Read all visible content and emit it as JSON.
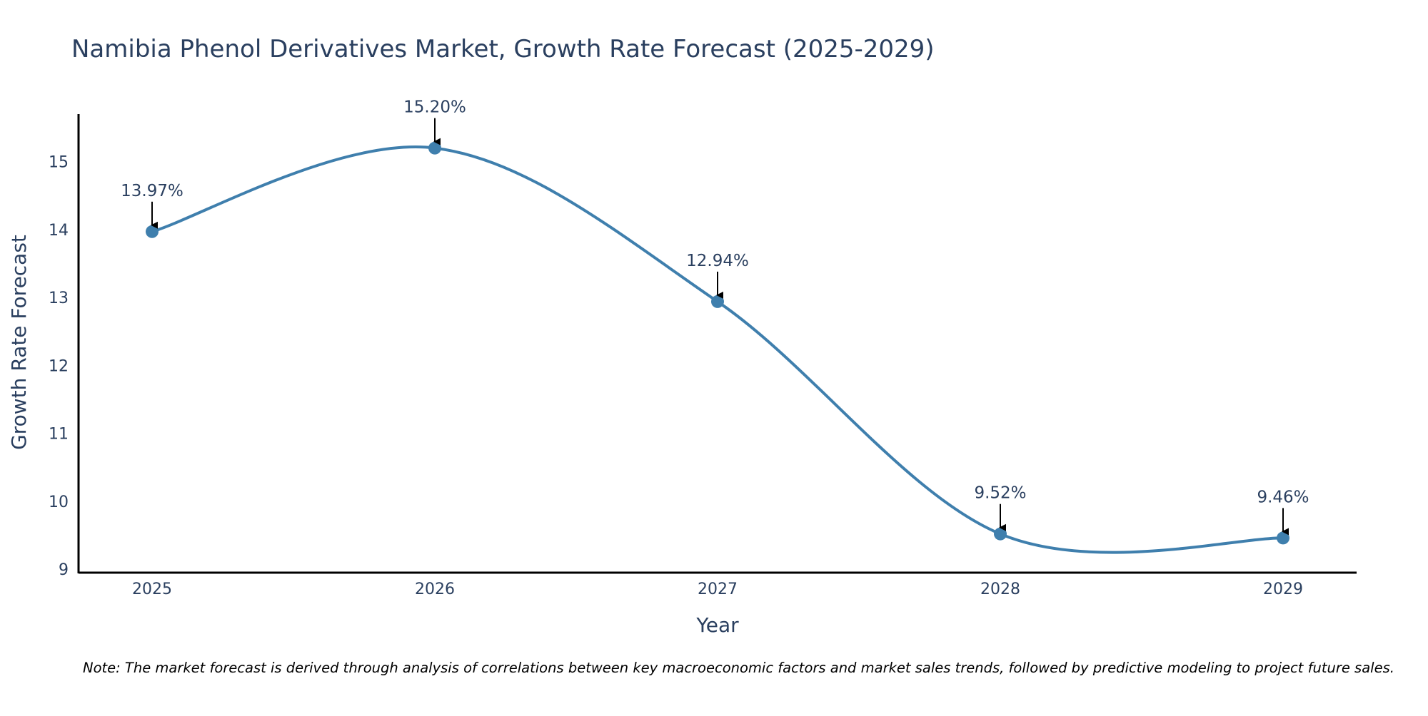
{
  "chart_data": {
    "type": "line",
    "title": "Namibia Phenol Derivatives Market, Growth Rate Forecast (2025-2029)",
    "xlabel": "Year",
    "ylabel": "Growth Rate Forecast",
    "categories": [
      "2025",
      "2026",
      "2027",
      "2028",
      "2029"
    ],
    "series": [
      {
        "name": "Growth Rate Forecast",
        "values": [
          13.97,
          15.2,
          12.94,
          9.52,
          9.46
        ],
        "labels": [
          "13.97%",
          "15.20%",
          "12.94%",
          "9.52%",
          "9.46%"
        ]
      }
    ],
    "ylim": [
      8.95,
      15.7
    ],
    "yticks": [
      9,
      10,
      11,
      12,
      13,
      14,
      15
    ],
    "grid": false,
    "line_shape": "spline",
    "note": "Note: The market forecast is derived through analysis of correlations between key macroeconomic factors and market sales trends, followed by predictive modeling to project future sales."
  },
  "colors": {
    "line": "#3f7fad",
    "marker": "#3f7fad",
    "text": "#2a3f5f",
    "axis": "#000000",
    "arrow": "#000000",
    "background": "#ffffff"
  }
}
